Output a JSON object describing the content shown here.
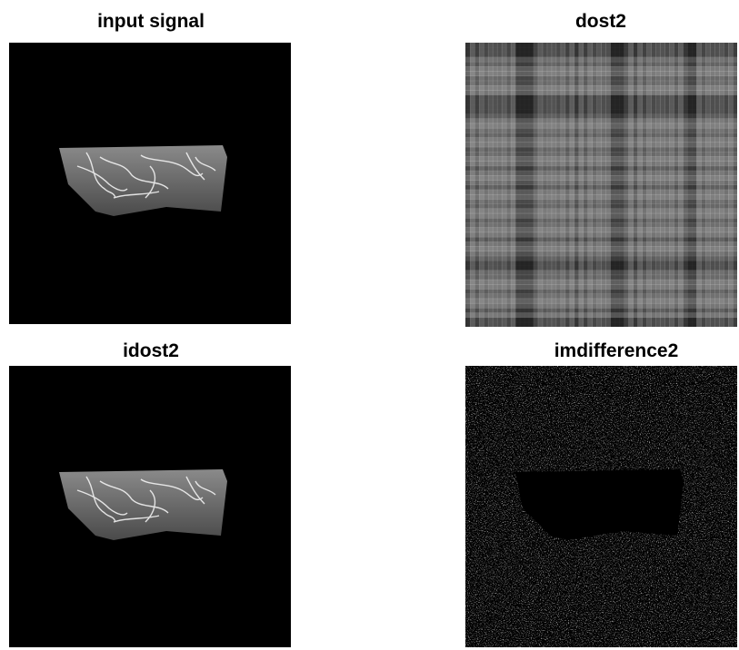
{
  "panels": [
    {
      "title": "input signal"
    },
    {
      "title": "dost2"
    },
    {
      "title": "idost2"
    },
    {
      "title": "imdifference2"
    }
  ]
}
